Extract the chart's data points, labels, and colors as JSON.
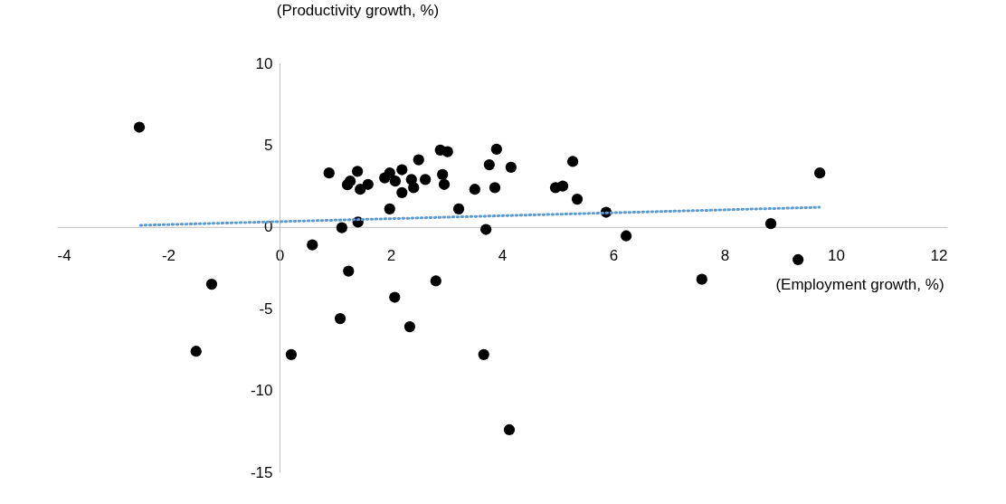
{
  "chart_data": {
    "type": "scatter",
    "xlabel": "(Employment growth, %)",
    "ylabel": "(Productivity growth, %)",
    "xlim": [
      -4,
      12
    ],
    "ylim": [
      -15,
      10
    ],
    "xticks": [
      -4,
      -2,
      0,
      2,
      4,
      6,
      8,
      10,
      12
    ],
    "yticks": [
      -15,
      -10,
      -5,
      0,
      5,
      10
    ],
    "grid": false,
    "marker": "circle",
    "series": [
      {
        "color": "#000000",
        "x": [
          -2.52,
          -1.5,
          -1.22,
          0.21,
          0.59,
          0.89,
          1.4,
          1.22,
          1.27,
          1.45,
          1.59,
          1.89,
          1.98,
          2.08,
          2.2,
          2.2,
          2.37,
          2.41,
          2.5,
          2.62,
          2.89,
          3.02,
          2.93,
          2.96,
          1.98,
          1.41,
          1.12,
          3.22,
          3.51,
          3.77,
          3.9,
          3.87,
          4.16,
          3.71,
          4.96,
          5.09,
          5.27,
          5.35,
          5.87,
          6.23,
          1.24,
          2.81,
          2.07,
          1.09,
          2.34,
          3.67,
          4.13,
          9.71,
          8.83,
          9.32,
          7.59
        ],
        "values": [
          6.1,
          -7.6,
          -3.5,
          -7.8,
          -1.1,
          3.3,
          3.4,
          2.58,
          2.8,
          2.3,
          2.6,
          3.0,
          3.3,
          2.8,
          3.5,
          2.1,
          2.9,
          2.4,
          4.1,
          2.9,
          4.7,
          4.6,
          3.2,
          2.6,
          1.1,
          0.3,
          -0.05,
          1.1,
          2.3,
          3.8,
          4.75,
          2.4,
          3.65,
          -0.15,
          2.4,
          2.5,
          4.0,
          1.7,
          0.9,
          -0.55,
          -2.7,
          -3.3,
          -4.3,
          -5.6,
          -6.1,
          -7.8,
          -12.4,
          3.3,
          0.2,
          -2.0,
          -3.2
        ]
      },
      {
        "type": "line",
        "color": "#5b9bd5",
        "line_style": "dotted",
        "marker": "none",
        "x": [
          -2.5,
          9.7
        ],
        "values": [
          0.1,
          1.2
        ]
      }
    ]
  }
}
